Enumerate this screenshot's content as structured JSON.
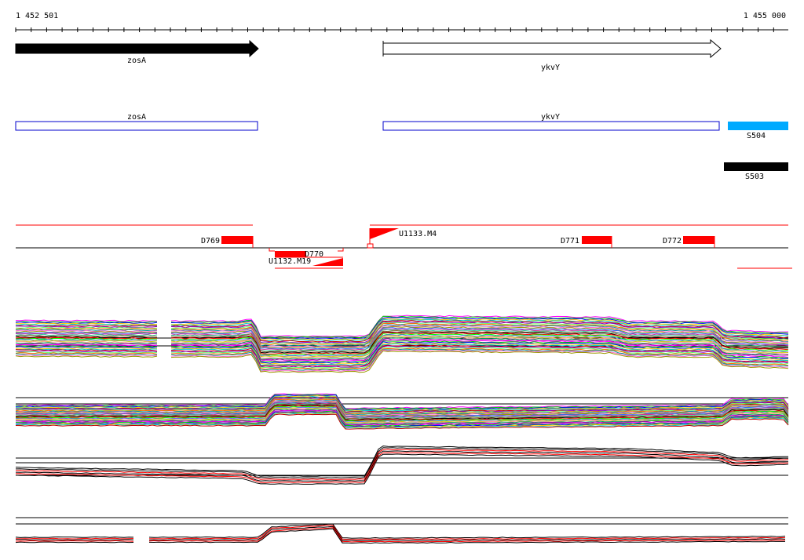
{
  "ruler": {
    "start_label": "1 452 501",
    "end_label": "1 455 000"
  },
  "genes": [
    {
      "name": "zosA",
      "strand": "+",
      "filled": true
    },
    {
      "name": "ykvY",
      "strand": "+",
      "filled": false
    }
  ],
  "annotations": [
    {
      "name": "zosA",
      "color": "#0000cc"
    },
    {
      "name": "ykvY",
      "color": "#0000cc"
    }
  ],
  "segments": [
    {
      "name": "S504",
      "color": "#00aaff"
    },
    {
      "name": "S503",
      "color": "#000000"
    }
  ],
  "features": [
    {
      "name": "D769",
      "color": "#ff0000"
    },
    {
      "name": "D770",
      "color": "#ff0000"
    },
    {
      "name": "D771",
      "color": "#ff0000"
    },
    {
      "name": "D772",
      "color": "#ff0000"
    },
    {
      "name": "U1132.M19",
      "color": "#ff0000"
    },
    {
      "name": "U1133.M4",
      "color": "#ff0000"
    }
  ],
  "colors": {
    "gene_fill": "#000000",
    "feature": "#ff0000",
    "segment_blue": "#00aaff",
    "annotation_box": "#0000cc"
  }
}
